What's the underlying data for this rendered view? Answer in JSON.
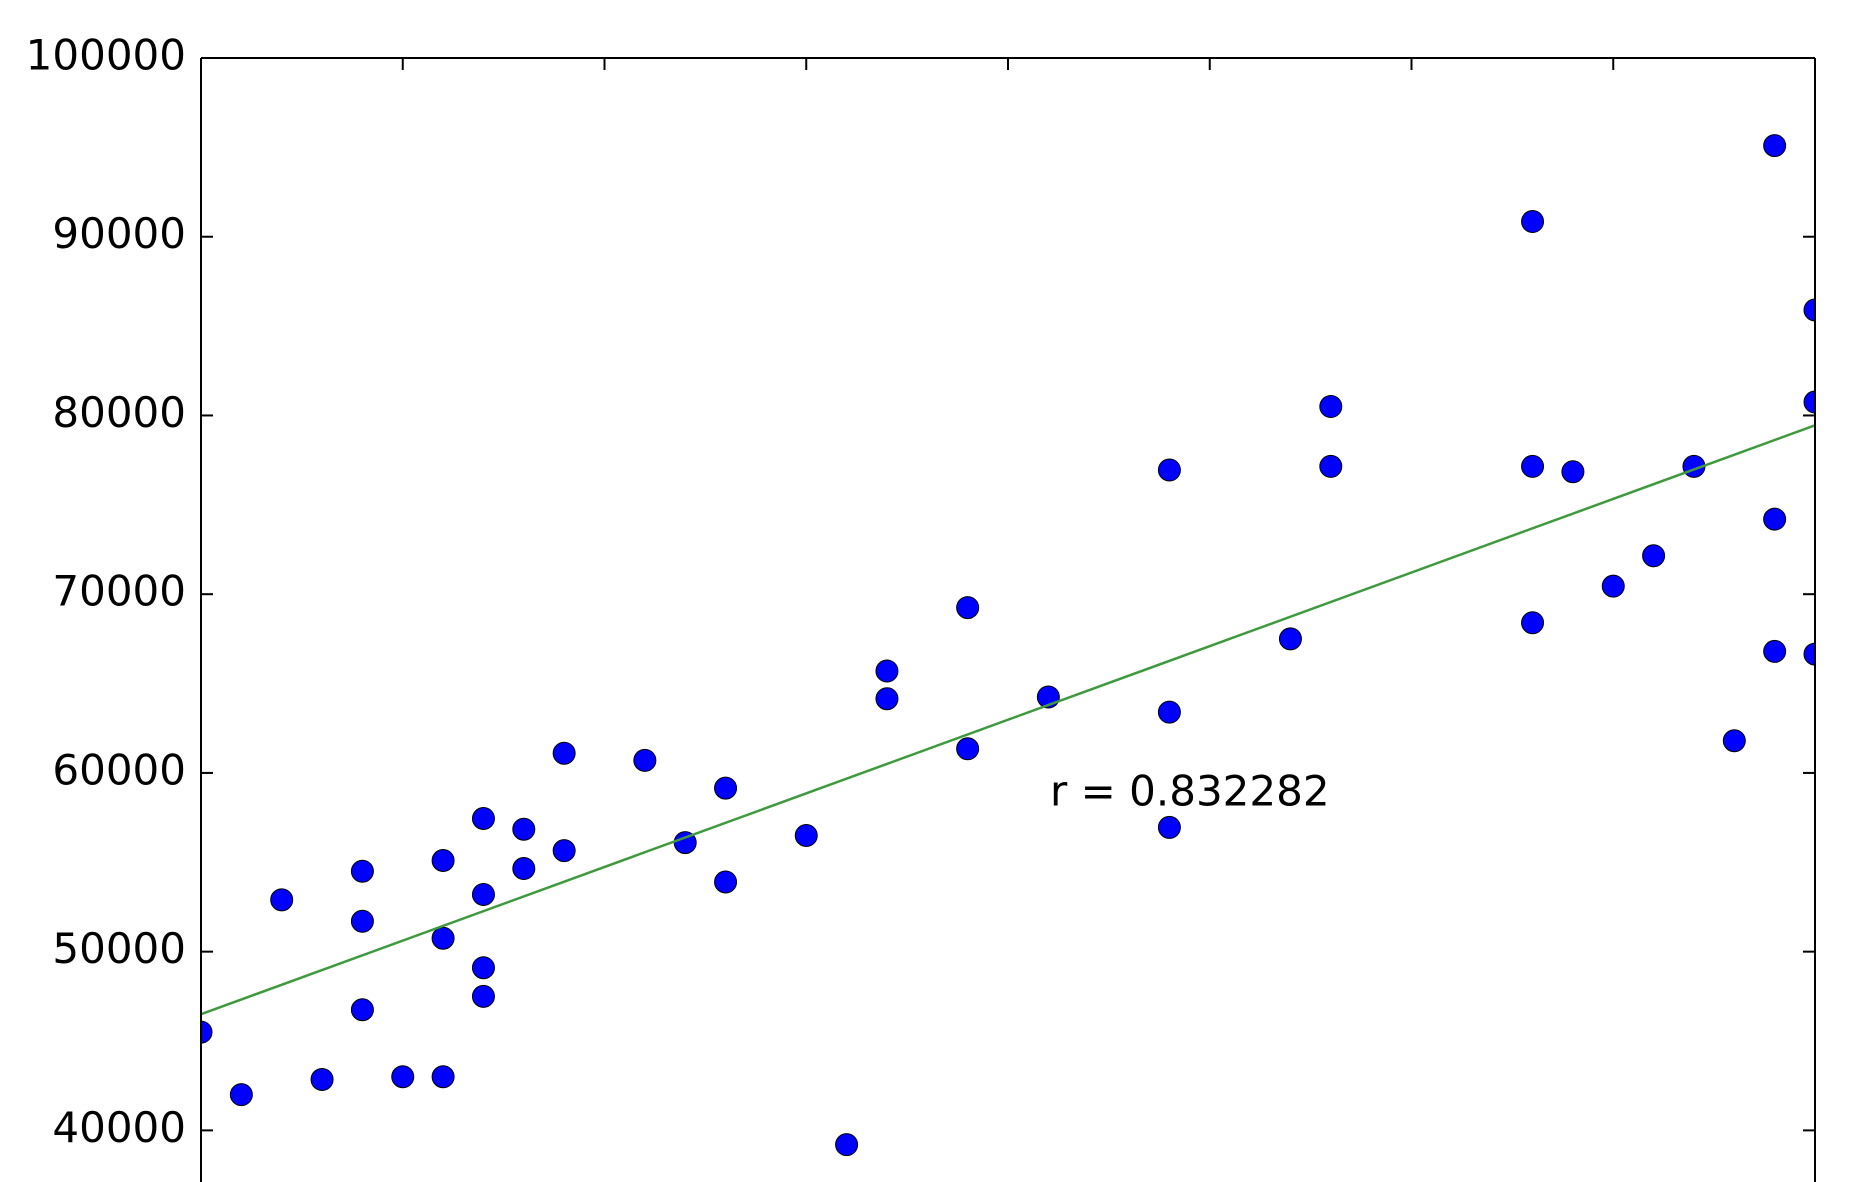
{
  "chart_data": {
    "type": "scatter",
    "annotation": "r = 0.832282",
    "xlim": [
      0,
      40
    ],
    "xticks": [
      0,
      5,
      10,
      15,
      20,
      25,
      30,
      35,
      40
    ],
    "ylim": [
      37000,
      100000
    ],
    "yticks": [
      40000,
      50000,
      60000,
      70000,
      80000,
      90000,
      100000
    ],
    "series": [
      {
        "type": "scatter",
        "color": "#0000ff",
        "x": [
          0,
          1,
          2,
          3,
          4,
          4,
          4,
          5,
          6,
          6,
          6,
          7,
          7,
          7,
          7,
          8,
          8,
          9,
          9,
          11,
          12,
          13,
          13,
          15,
          16,
          17,
          17,
          19,
          19,
          21,
          24,
          24,
          24,
          27,
          28,
          28,
          33,
          33,
          33,
          34,
          35,
          36,
          37,
          38,
          39,
          39,
          39,
          40,
          40,
          40
        ],
        "values": [
          45500,
          42000,
          52900,
          42850,
          54500,
          51700,
          46750,
          43000,
          55100,
          50750,
          43000,
          57450,
          53200,
          49100,
          47500,
          56850,
          54650,
          61100,
          55650,
          60700,
          56100,
          59150,
          53900,
          56500,
          39200,
          65700,
          64150,
          69250,
          61350,
          64250,
          76950,
          63400,
          56950,
          67500,
          80500,
          77150,
          90850,
          77150,
          68400,
          76850,
          70450,
          72150,
          77150,
          61800,
          95100,
          74200,
          66800,
          85900,
          80750,
          66650
        ]
      },
      {
        "type": "line",
        "color": "#3f9a3f",
        "x": [
          0,
          40
        ],
        "values": [
          46500,
          79450
        ]
      }
    ]
  }
}
